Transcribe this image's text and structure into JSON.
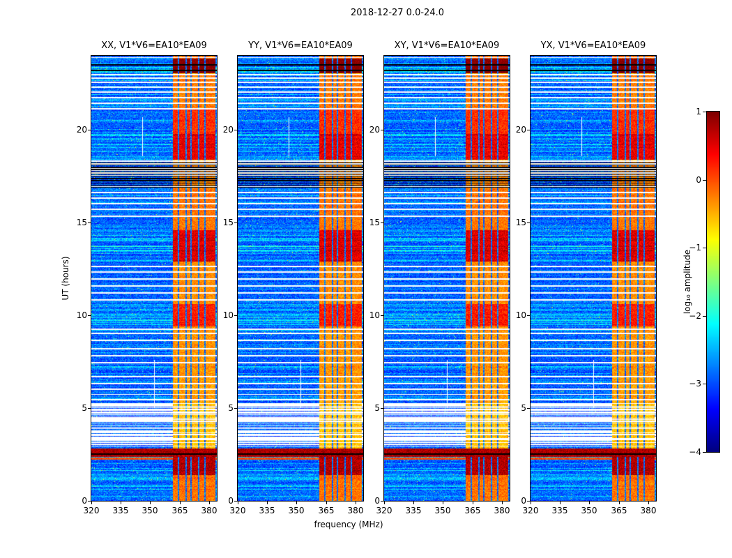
{
  "chart_data": {
    "type": "heatmap",
    "subtype": "radio-dynamic-spectrum",
    "title": "2018-12-27 0.0-24.0",
    "xlabel": "frequency (MHz)",
    "ylabel": "UT (hours)",
    "colorbar_label": "log₁₀ amplitude",
    "colormap": "jet",
    "x_range": [
      320,
      384
    ],
    "y_range": [
      0,
      24
    ],
    "value_range": [
      -4,
      1
    ],
    "xticks": [
      "320",
      "335",
      "350",
      "365",
      "380"
    ],
    "yticks": [
      "0",
      "5",
      "10",
      "15",
      "20"
    ],
    "colorbar_ticks": [
      "1",
      "0",
      "−1",
      "−2",
      "−3",
      "−4"
    ],
    "panels": [
      {
        "title": "XX, V1*V6=EA10*EA09"
      },
      {
        "title": "YY, V1*V6=EA10*EA09"
      },
      {
        "title": "XY, V1*V6=EA10*EA09"
      },
      {
        "title": "YX, V1*V6=EA10*EA09"
      }
    ],
    "features": {
      "rfi_band": [
        361.5,
        383.2
      ],
      "rfi_dark_lines": [
        [
          363.95,
          364.65
        ],
        [
          368.05,
          368.75
        ],
        [
          370.65,
          371.35
        ],
        [
          374.35,
          375.05
        ],
        [
          377.55,
          378.25
        ]
      ],
      "red_band": [
        2.37,
        2.82
      ],
      "orange_rows": [
        [
          2.22,
          2.34
        ]
      ],
      "gap_region": [
        2.95,
        5.27
      ],
      "black_band_region": [
        16.85,
        18.28
      ],
      "black_rows": [
        [
          2.5,
          2.56
        ],
        [
          16.88,
          16.93
        ],
        [
          17.0,
          17.05
        ],
        [
          17.12,
          17.17
        ],
        [
          17.24,
          17.29
        ],
        [
          17.36,
          17.41
        ],
        [
          17.48,
          17.53
        ],
        [
          17.6,
          17.65
        ],
        [
          17.72,
          17.77
        ],
        [
          17.84,
          17.89
        ],
        [
          17.96,
          18.01
        ],
        [
          18.08,
          18.13
        ],
        [
          18.2,
          18.25
        ],
        [
          23.19,
          23.25
        ],
        [
          23.47,
          23.53
        ]
      ],
      "white_lines": [
        [
          5.43,
          5.5
        ],
        [
          5.7,
          5.77
        ],
        [
          6.0,
          6.07
        ],
        [
          6.3,
          6.37
        ],
        [
          6.66,
          6.73
        ],
        [
          7.42,
          7.49
        ],
        [
          7.79,
          7.86
        ],
        [
          8.17,
          8.24
        ],
        [
          8.62,
          8.69
        ],
        [
          8.99,
          9.06
        ],
        [
          9.22,
          9.28
        ],
        [
          10.8,
          10.87
        ],
        [
          11.17,
          11.24
        ],
        [
          11.54,
          11.61
        ],
        [
          11.92,
          11.99
        ],
        [
          12.3,
          12.37
        ],
        [
          12.6,
          12.67
        ],
        [
          15.31,
          15.38
        ],
        [
          15.68,
          15.75
        ],
        [
          15.98,
          16.05
        ],
        [
          16.28,
          16.35
        ],
        [
          16.58,
          16.65
        ],
        [
          18.3,
          18.37
        ],
        [
          21.1,
          21.17
        ],
        [
          21.4,
          21.47
        ],
        [
          21.71,
          21.78
        ],
        [
          22.01,
          22.08
        ],
        [
          22.27,
          22.34
        ],
        [
          22.53,
          22.6
        ],
        [
          22.76,
          22.83
        ],
        [
          22.95,
          23.02
        ],
        [
          23.88,
          23.94
        ]
      ],
      "white_vlines": [
        [
          351.9,
          352.4,
          5.0,
          7.6
        ],
        [
          345.9,
          346.4,
          18.6,
          20.7
        ]
      ],
      "rfi_hot_windows": [
        [
          0.0,
          1.4,
          0.35
        ],
        [
          1.4,
          2.37,
          1.3
        ],
        [
          5.27,
          6.7,
          0.15
        ],
        [
          6.7,
          9.4,
          0.2
        ],
        [
          9.4,
          10.6,
          0.75
        ],
        [
          10.6,
          12.9,
          0.25
        ],
        [
          12.9,
          14.6,
          1.05
        ],
        [
          14.6,
          16.85,
          0.35
        ],
        [
          16.85,
          18.3,
          0.3
        ],
        [
          18.4,
          19.8,
          1.0
        ],
        [
          19.8,
          21.1,
          0.7
        ],
        [
          21.1,
          23.0,
          0.3
        ],
        [
          23.05,
          23.85,
          1.55
        ],
        [
          23.85,
          24.0,
          0.4
        ]
      ],
      "streak_windows": [
        [
          0.0,
          2.37,
          0.35,
          0.6
        ],
        [
          5.27,
          6.7,
          0.3,
          0.5
        ],
        [
          6.7,
          7.6,
          0.35,
          0.6
        ],
        [
          7.6,
          9.4,
          0.25,
          0.45
        ],
        [
          9.4,
          10.6,
          0.5,
          0.75
        ],
        [
          10.6,
          12.9,
          0.18,
          0.4
        ],
        [
          12.9,
          14.6,
          0.55,
          0.85
        ],
        [
          14.6,
          16.85,
          0.3,
          0.5
        ],
        [
          18.4,
          19.8,
          0.45,
          0.7
        ],
        [
          19.8,
          21.1,
          0.3,
          0.5
        ],
        [
          21.1,
          23.0,
          0.35,
          0.6
        ],
        [
          23.0,
          23.9,
          0.5,
          0.8
        ]
      ]
    }
  }
}
